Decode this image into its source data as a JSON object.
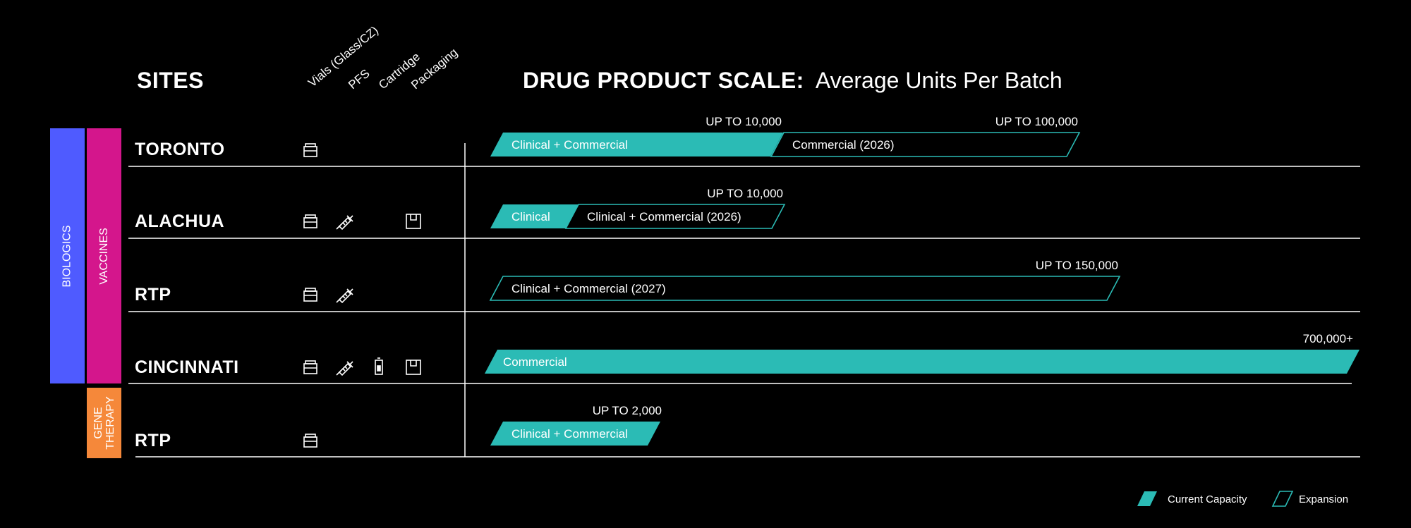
{
  "header": {
    "sites_title": "SITES",
    "scale_title": "DRUG PRODUCT SCALE:",
    "scale_subtitle": "Average Units Per Batch",
    "columns": [
      "Vials (Glass/CZ)",
      "PFS",
      "Cartridge",
      "Packaging"
    ]
  },
  "bands": {
    "biologics": "BIOLOGICS",
    "vaccines": "VACCINES",
    "gene_therapy": "GENE THERAPY",
    "colors": {
      "biologics": "#4f5bff",
      "vaccines": "#d4168c",
      "gene_therapy": "#f5883a"
    }
  },
  "colors": {
    "current": "#2bbbb5",
    "expansion": "#2bbbb5",
    "background": "#000000",
    "text": "#ffffff"
  },
  "legend": {
    "current": "Current Capacity",
    "expansion": "Expansion"
  },
  "chart_data": {
    "type": "bar",
    "title": "DRUG PRODUCT SCALE:",
    "subtitle": "Average Units Per Batch",
    "rows": [
      {
        "site": "TORONTO",
        "capabilities": [
          "vial"
        ],
        "segments": [
          {
            "kind": "current",
            "label": "Clinical + Commercial",
            "value": 10000
          },
          {
            "kind": "expansion",
            "label": "Commercial (2026)",
            "value": 100000
          }
        ],
        "annotations": [
          "UP TO 10,000",
          "UP TO 100,000"
        ]
      },
      {
        "site": "ALACHUA",
        "capabilities": [
          "vial",
          "pfs",
          "packaging"
        ],
        "segments": [
          {
            "kind": "current",
            "label": "Clinical",
            "value": 2500
          },
          {
            "kind": "expansion",
            "label": "Clinical + Commercial (2026)",
            "value": 10000
          }
        ],
        "annotations": [
          "UP TO 10,000"
        ]
      },
      {
        "site": "RTP",
        "capabilities": [
          "vial",
          "pfs"
        ],
        "segments": [
          {
            "kind": "expansion",
            "label": "Clinical + Commercial (2027)",
            "value": 150000
          }
        ],
        "annotations": [
          "UP TO 150,000"
        ]
      },
      {
        "site": "CINCINNATI",
        "capabilities": [
          "vial",
          "pfs",
          "cartridge",
          "packaging"
        ],
        "segments": [
          {
            "kind": "current",
            "label": "Commercial",
            "value": 700000
          }
        ],
        "annotations": [
          "700,000+"
        ]
      },
      {
        "site": "RTP",
        "capabilities": [
          "vial"
        ],
        "segments": [
          {
            "kind": "current",
            "label": "Clinical + Commercial",
            "value": 2000
          }
        ],
        "annotations": [
          "UP TO 2,000"
        ]
      }
    ]
  }
}
